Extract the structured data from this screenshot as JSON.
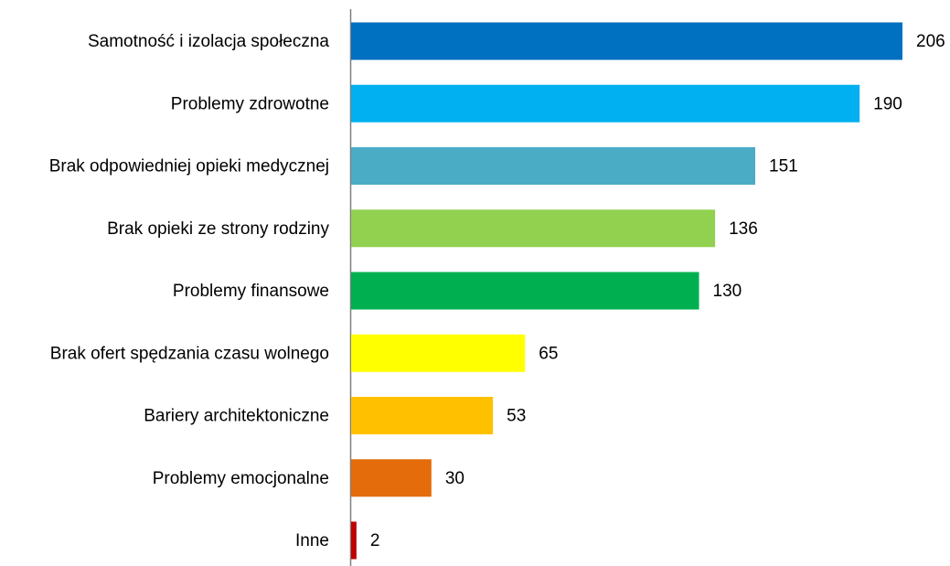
{
  "chart_data": {
    "type": "bar",
    "orientation": "horizontal",
    "categories": [
      "Samotność i izolacja społeczna",
      "Problemy zdrowotne",
      "Brak odpowiedniej opieki medycznej",
      "Brak opieki ze strony rodziny",
      "Problemy finansowe",
      "Brak ofert spędzania czasu wolnego",
      "Bariery architektoniczne",
      "Problemy emocjonalne",
      "Inne"
    ],
    "values": [
      206,
      190,
      151,
      136,
      130,
      65,
      53,
      30,
      2
    ],
    "colors": [
      "#0070c0",
      "#00b0f0",
      "#4bacc6",
      "#92d050",
      "#00b050",
      "#ffff00",
      "#ffc000",
      "#e46c0a",
      "#c00000"
    ]
  }
}
